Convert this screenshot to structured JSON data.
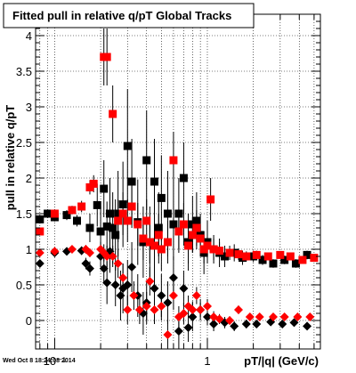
{
  "chart_data": {
    "type": "scatter",
    "title": "Fitted pull in relative q/pT  Global Tracks",
    "xlabel": "pT/|q| (GeV/c)",
    "ylabel": "pull in relative q/pT",
    "footer": "Wed Oct  8 18:24:08 2014",
    "x_scale": "log",
    "xlim": [
      0.075,
      5.5
    ],
    "ylim": [
      -0.4,
      4.3
    ],
    "grid": true,
    "x_ticks": [
      {
        "value": 0.1,
        "label": "10⁻¹"
      },
      {
        "value": 1,
        "label": "1"
      }
    ],
    "y_ticks": [
      {
        "value": 0,
        "label": "0"
      },
      {
        "value": 0.5,
        "label": "0.5"
      },
      {
        "value": 1,
        "label": "1"
      },
      {
        "value": 1.5,
        "label": "1.5"
      },
      {
        "value": 2,
        "label": "2"
      },
      {
        "value": 2.5,
        "label": "2.5"
      },
      {
        "value": 3,
        "label": "3"
      },
      {
        "value": 3.5,
        "label": "3.5"
      },
      {
        "value": 4,
        "label": "4"
      }
    ],
    "series": [
      {
        "color": "#000000",
        "marker": "square",
        "points": [
          {
            "x": 0.08,
            "y": 1.42,
            "err": 0.06
          },
          {
            "x": 0.09,
            "y": 1.5,
            "err": 0.06
          },
          {
            "x": 0.1,
            "y": 1.45,
            "err": 0.06
          },
          {
            "x": 0.12,
            "y": 1.48,
            "err": 0.07
          },
          {
            "x": 0.14,
            "y": 1.4,
            "err": 0.08
          },
          {
            "x": 0.17,
            "y": 1.3,
            "err": 0.2
          },
          {
            "x": 0.19,
            "y": 1.62,
            "err": 0.3
          },
          {
            "x": 0.2,
            "y": 1.25,
            "err": 0.35
          },
          {
            "x": 0.21,
            "y": 1.85,
            "err": 0.4
          },
          {
            "x": 0.22,
            "y": 1.32,
            "err": 0.35
          },
          {
            "x": 0.23,
            "y": 1.5,
            "err": 0.5
          },
          {
            "x": 0.24,
            "y": 1.3,
            "err": 0.5
          },
          {
            "x": 0.25,
            "y": 1.2,
            "err": 0.5
          },
          {
            "x": 0.26,
            "y": 1.5,
            "err": 0.6
          },
          {
            "x": 0.28,
            "y": 1.63,
            "err": 0.6
          },
          {
            "x": 0.3,
            "y": 2.45,
            "err": 0.8
          },
          {
            "x": 0.32,
            "y": 1.95,
            "err": 0.6
          },
          {
            "x": 0.35,
            "y": 1.38,
            "err": 0.6
          },
          {
            "x": 0.38,
            "y": 1.1,
            "err": 0.5
          },
          {
            "x": 0.4,
            "y": 2.25,
            "err": 0.7
          },
          {
            "x": 0.42,
            "y": 1.1,
            "err": 0.5
          },
          {
            "x": 0.45,
            "y": 1.95,
            "err": 0.6
          },
          {
            "x": 0.48,
            "y": 1.3,
            "err": 0.5
          },
          {
            "x": 0.5,
            "y": 1.72,
            "err": 0.6
          },
          {
            "x": 0.55,
            "y": 1.5,
            "err": 0.6
          },
          {
            "x": 0.6,
            "y": 1.35,
            "err": 0.5
          },
          {
            "x": 0.65,
            "y": 1.5,
            "err": 0.5
          },
          {
            "x": 0.7,
            "y": 2.0,
            "err": 0.5
          },
          {
            "x": 0.75,
            "y": 1.1,
            "err": 0.4
          },
          {
            "x": 0.8,
            "y": 1.35,
            "err": 0.4
          },
          {
            "x": 0.85,
            "y": 1.4,
            "err": 0.4
          },
          {
            "x": 0.9,
            "y": 1.2,
            "err": 0.3
          },
          {
            "x": 0.95,
            "y": 0.95,
            "err": 0.3
          },
          {
            "x": 1.0,
            "y": 1.1,
            "err": 0.3
          },
          {
            "x": 1.1,
            "y": 1.0,
            "err": 0.2
          },
          {
            "x": 1.2,
            "y": 0.95,
            "err": 0.2
          },
          {
            "x": 1.3,
            "y": 0.9,
            "err": 0.15
          },
          {
            "x": 1.5,
            "y": 0.95,
            "err": 0.12
          },
          {
            "x": 1.7,
            "y": 0.88,
            "err": 0.1
          },
          {
            "x": 2.0,
            "y": 0.9,
            "err": 0.08
          },
          {
            "x": 2.3,
            "y": 0.85,
            "err": 0.07
          },
          {
            "x": 2.7,
            "y": 0.8,
            "err": 0.06
          },
          {
            "x": 3.2,
            "y": 0.85,
            "err": 0.06
          },
          {
            "x": 3.8,
            "y": 0.8,
            "err": 0.06
          },
          {
            "x": 4.5,
            "y": 0.92,
            "err": 0.06
          }
        ]
      },
      {
        "color": "#ff0000",
        "marker": "square",
        "points": [
          {
            "x": 0.08,
            "y": 1.25,
            "err": 0.05
          },
          {
            "x": 0.1,
            "y": 1.5,
            "err": 0.06
          },
          {
            "x": 0.13,
            "y": 1.55,
            "err": 0.06
          },
          {
            "x": 0.15,
            "y": 1.6,
            "err": 0.08
          },
          {
            "x": 0.17,
            "y": 1.87,
            "err": 0.1
          },
          {
            "x": 0.18,
            "y": 1.92,
            "err": 0.12
          },
          {
            "x": 0.21,
            "y": 3.7,
            "err": 0.4
          },
          {
            "x": 0.22,
            "y": 3.7,
            "err": 0.4
          },
          {
            "x": 0.24,
            "y": 2.9,
            "err": 0.4
          },
          {
            "x": 0.26,
            "y": 1.4,
            "err": 0.3
          },
          {
            "x": 0.28,
            "y": 1.5,
            "err": 0.3
          },
          {
            "x": 0.3,
            "y": 1.4,
            "err": 0.3
          },
          {
            "x": 0.32,
            "y": 1.6,
            "err": 0.3
          },
          {
            "x": 0.35,
            "y": 1.35,
            "err": 0.3
          },
          {
            "x": 0.38,
            "y": 1.15,
            "err": 0.3
          },
          {
            "x": 0.4,
            "y": 1.4,
            "err": 0.3
          },
          {
            "x": 0.42,
            "y": 1.1,
            "err": 0.3
          },
          {
            "x": 0.45,
            "y": 1.05,
            "err": 0.3
          },
          {
            "x": 0.48,
            "y": 1.2,
            "err": 0.3
          },
          {
            "x": 0.5,
            "y": 1.0,
            "err": 0.3
          },
          {
            "x": 0.55,
            "y": 1.1,
            "err": 0.3
          },
          {
            "x": 0.6,
            "y": 2.25,
            "err": 0.4
          },
          {
            "x": 0.65,
            "y": 1.25,
            "err": 0.3
          },
          {
            "x": 0.7,
            "y": 1.35,
            "err": 0.3
          },
          {
            "x": 0.75,
            "y": 1.05,
            "err": 0.25
          },
          {
            "x": 0.8,
            "y": 1.2,
            "err": 0.25
          },
          {
            "x": 0.85,
            "y": 1.3,
            "err": 0.25
          },
          {
            "x": 0.9,
            "y": 1.15,
            "err": 0.2
          },
          {
            "x": 0.95,
            "y": 1.0,
            "err": 0.2
          },
          {
            "x": 1.0,
            "y": 1.05,
            "err": 0.2
          },
          {
            "x": 1.05,
            "y": 1.7,
            "err": 0.3
          },
          {
            "x": 1.1,
            "y": 1.0,
            "err": 0.15
          },
          {
            "x": 1.2,
            "y": 0.98,
            "err": 0.12
          },
          {
            "x": 1.4,
            "y": 0.95,
            "err": 0.1
          },
          {
            "x": 1.6,
            "y": 0.93,
            "err": 0.08
          },
          {
            "x": 1.8,
            "y": 0.9,
            "err": 0.07
          },
          {
            "x": 2.1,
            "y": 0.92,
            "err": 0.06
          },
          {
            "x": 2.5,
            "y": 0.9,
            "err": 0.05
          },
          {
            "x": 3.0,
            "y": 0.92,
            "err": 0.05
          },
          {
            "x": 3.5,
            "y": 0.9,
            "err": 0.05
          },
          {
            "x": 4.2,
            "y": 0.85,
            "err": 0.05
          },
          {
            "x": 5.0,
            "y": 0.88,
            "err": 0.05
          }
        ]
      },
      {
        "color": "#000000",
        "marker": "diamond",
        "points": [
          {
            "x": 0.08,
            "y": 0.8,
            "err": 0.04
          },
          {
            "x": 0.1,
            "y": 0.95,
            "err": 0.04
          },
          {
            "x": 0.12,
            "y": 0.97,
            "err": 0.05
          },
          {
            "x": 0.15,
            "y": 0.98,
            "err": 0.06
          },
          {
            "x": 0.16,
            "y": 0.8,
            "err": 0.08
          },
          {
            "x": 0.17,
            "y": 0.73,
            "err": 0.1
          },
          {
            "x": 0.2,
            "y": 0.9,
            "err": 0.15
          },
          {
            "x": 0.21,
            "y": 0.73,
            "err": 0.2
          },
          {
            "x": 0.22,
            "y": 0.53,
            "err": 0.3
          },
          {
            "x": 0.23,
            "y": 0.97,
            "err": 0.3
          },
          {
            "x": 0.25,
            "y": 0.5,
            "err": 0.3
          },
          {
            "x": 0.27,
            "y": 0.35,
            "err": 0.35
          },
          {
            "x": 0.28,
            "y": 0.45,
            "err": 0.35
          },
          {
            "x": 0.3,
            "y": 0.5,
            "err": 0.35
          },
          {
            "x": 0.32,
            "y": 0.75,
            "err": 0.35
          },
          {
            "x": 0.35,
            "y": 0.35,
            "err": 0.3
          },
          {
            "x": 0.38,
            "y": 0.1,
            "err": 0.3
          },
          {
            "x": 0.4,
            "y": 0.25,
            "err": 0.3
          },
          {
            "x": 0.45,
            "y": 0.45,
            "err": 0.3
          },
          {
            "x": 0.5,
            "y": 0.35,
            "err": 0.3
          },
          {
            "x": 0.55,
            "y": 0.25,
            "err": 0.3
          },
          {
            "x": 0.6,
            "y": 0.6,
            "err": 0.3
          },
          {
            "x": 0.65,
            "y": -0.15,
            "err": 0.25
          },
          {
            "x": 0.7,
            "y": 0.45,
            "err": 0.25
          },
          {
            "x": 0.75,
            "y": -0.1,
            "err": 0.2
          },
          {
            "x": 0.8,
            "y": 0.05,
            "err": 0.2
          },
          {
            "x": 0.9,
            "y": 0.15,
            "err": 0.15
          },
          {
            "x": 1.0,
            "y": 0.05,
            "err": 0.12
          },
          {
            "x": 1.1,
            "y": -0.05,
            "err": 0.1
          },
          {
            "x": 1.3,
            "y": -0.03,
            "err": 0.08
          },
          {
            "x": 1.5,
            "y": -0.08,
            "err": 0.07
          },
          {
            "x": 1.8,
            "y": -0.05,
            "err": 0.06
          },
          {
            "x": 2.1,
            "y": -0.05,
            "err": 0.05
          },
          {
            "x": 2.6,
            "y": -0.02,
            "err": 0.05
          },
          {
            "x": 3.1,
            "y": -0.05,
            "err": 0.05
          },
          {
            "x": 3.7,
            "y": -0.03,
            "err": 0.05
          },
          {
            "x": 4.5,
            "y": -0.08,
            "err": 0.05
          }
        ]
      },
      {
        "color": "#ff0000",
        "marker": "diamond",
        "points": [
          {
            "x": 0.08,
            "y": 0.95,
            "err": 0.04
          },
          {
            "x": 0.1,
            "y": 0.97,
            "err": 0.04
          },
          {
            "x": 0.13,
            "y": 1.0,
            "err": 0.05
          },
          {
            "x": 0.16,
            "y": 1.0,
            "err": 0.06
          },
          {
            "x": 0.17,
            "y": 0.95,
            "err": 0.06
          },
          {
            "x": 0.2,
            "y": 1.0,
            "err": 0.1
          },
          {
            "x": 0.21,
            "y": 0.95,
            "err": 0.12
          },
          {
            "x": 0.22,
            "y": 0.9,
            "err": 0.15
          },
          {
            "x": 0.24,
            "y": 0.9,
            "err": 0.15
          },
          {
            "x": 0.26,
            "y": 0.8,
            "err": 0.2
          },
          {
            "x": 0.28,
            "y": 0.6,
            "err": 0.2
          },
          {
            "x": 0.3,
            "y": 0.15,
            "err": 0.2
          },
          {
            "x": 0.33,
            "y": 0.35,
            "err": 0.2
          },
          {
            "x": 0.36,
            "y": 0.15,
            "err": 0.2
          },
          {
            "x": 0.4,
            "y": 0.2,
            "err": 0.2
          },
          {
            "x": 0.42,
            "y": 0.55,
            "err": 0.2
          },
          {
            "x": 0.45,
            "y": 0.15,
            "err": 0.2
          },
          {
            "x": 0.5,
            "y": 0.2,
            "err": 0.2
          },
          {
            "x": 0.55,
            "y": -0.2,
            "err": 0.2
          },
          {
            "x": 0.6,
            "y": 0.35,
            "err": 0.2
          },
          {
            "x": 0.65,
            "y": 0.05,
            "err": 0.15
          },
          {
            "x": 0.7,
            "y": 0.1,
            "err": 0.15
          },
          {
            "x": 0.75,
            "y": 0.2,
            "err": 0.15
          },
          {
            "x": 0.8,
            "y": 0.15,
            "err": 0.12
          },
          {
            "x": 0.85,
            "y": 0.35,
            "err": 0.12
          },
          {
            "x": 0.9,
            "y": 0.15,
            "err": 0.1
          },
          {
            "x": 1.0,
            "y": 0.2,
            "err": 0.1
          },
          {
            "x": 1.1,
            "y": 0.05,
            "err": 0.08
          },
          {
            "x": 1.2,
            "y": 0.02,
            "err": 0.07
          },
          {
            "x": 1.4,
            "y": 0.0,
            "err": 0.06
          },
          {
            "x": 1.6,
            "y": 0.15,
            "err": 0.06
          },
          {
            "x": 1.9,
            "y": 0.05,
            "err": 0.05
          },
          {
            "x": 2.2,
            "y": 0.05,
            "err": 0.05
          },
          {
            "x": 2.7,
            "y": 0.05,
            "err": 0.05
          },
          {
            "x": 3.2,
            "y": 0.05,
            "err": 0.05
          },
          {
            "x": 3.9,
            "y": 0.05,
            "err": 0.05
          },
          {
            "x": 4.7,
            "y": 0.05,
            "err": 0.05
          }
        ]
      }
    ]
  }
}
